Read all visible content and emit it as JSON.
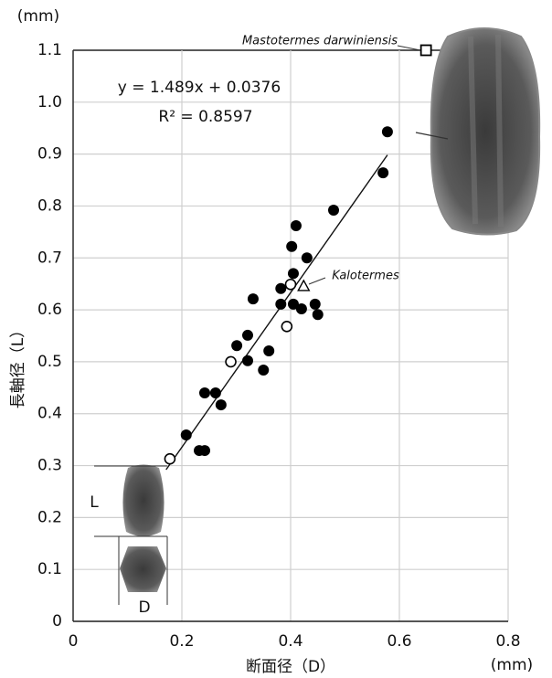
{
  "chart_data": {
    "type": "scatter",
    "x_label": "断面径（D）",
    "y_label": "長軸径（L）",
    "x_unit": "(mm)",
    "y_unit": "(mm)",
    "xlim": [
      0,
      0.8
    ],
    "ylim": [
      0,
      1.1
    ],
    "xticks": [
      0,
      0.2,
      0.4,
      0.6,
      0.8
    ],
    "yticks": [
      0,
      0.1,
      0.2,
      0.3,
      0.4,
      0.5,
      0.6,
      0.7,
      0.8,
      0.9,
      {
        "value": 1,
        "label": "1.0"
      },
      1.1
    ],
    "grid": true,
    "series": [
      {
        "marker": "filled-circle",
        "color": "#000000",
        "x": [
          0.208,
          0.232,
          0.242,
          0.242,
          0.262,
          0.272,
          0.301,
          0.321,
          0.321,
          0.331,
          0.35,
          0.36,
          0.382,
          0.382,
          0.402,
          0.405,
          0.405,
          0.41,
          0.42,
          0.43,
          0.445,
          0.45,
          0.479,
          0.57,
          0.578
        ],
        "values": [
          0.359,
          0.329,
          0.329,
          0.44,
          0.44,
          0.417,
          0.531,
          0.551,
          0.502,
          0.621,
          0.484,
          0.521,
          0.641,
          0.611,
          0.722,
          0.67,
          0.611,
          0.762,
          0.602,
          0.7,
          0.611,
          0.591,
          0.792,
          0.864,
          0.943
        ]
      },
      {
        "marker": "open-circle",
        "color": "#000000",
        "x": [
          0.178,
          0.29,
          0.393,
          0.4
        ],
        "values": [
          0.313,
          0.5,
          0.568,
          0.649
        ]
      },
      {
        "name": "Kalotermes",
        "marker": "open-triangle",
        "color": "#000000",
        "x": [
          0.424
        ],
        "values": [
          0.646
        ]
      },
      {
        "name": "Mastotermes darwiniensis",
        "marker": "open-square",
        "color": "#000000",
        "x": [
          0.649
        ],
        "values": [
          1.1
        ]
      }
    ],
    "trendline": {
      "slope": 1.489,
      "intercept": 0.0376,
      "xlim": [
        0.171,
        0.578
      ],
      "equation": "y = 1.489x + 0.0376",
      "r2_label": "R² = 0.8597"
    },
    "dimension_labels": [
      "L",
      "D"
    ]
  }
}
